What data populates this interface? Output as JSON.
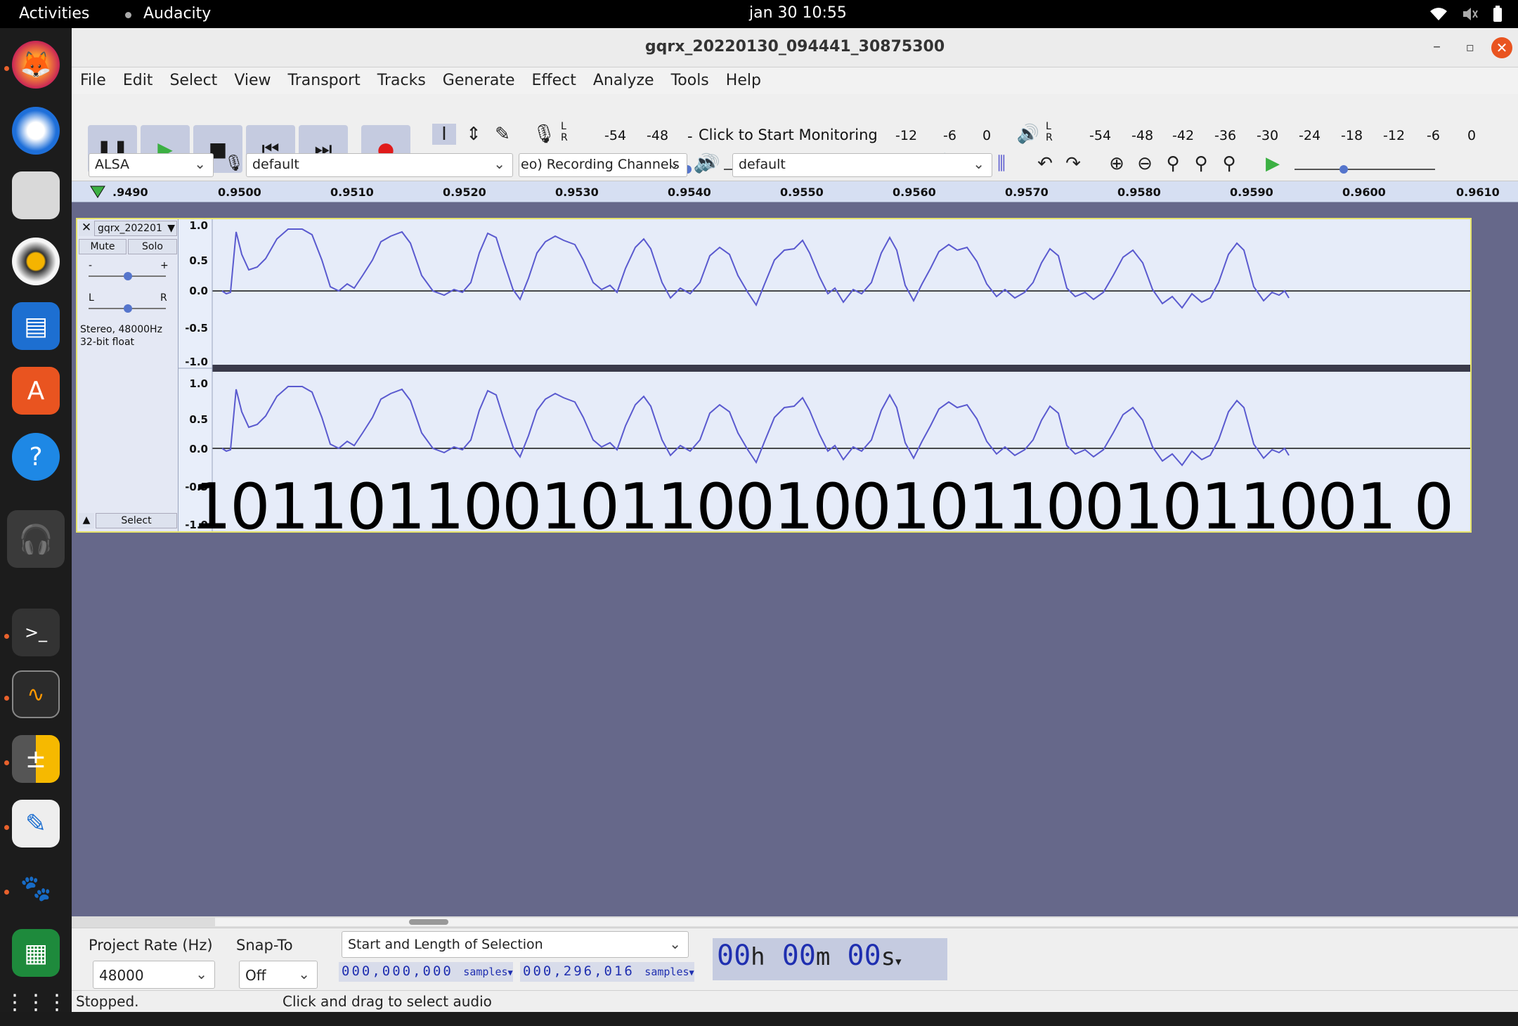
{
  "topbar": {
    "activities": "Activities",
    "app_name": "Audacity",
    "clock": "jan 30  10:55"
  },
  "window": {
    "title": "gqrx_20220130_094441_30875300"
  },
  "menu": [
    "File",
    "Edit",
    "Select",
    "View",
    "Transport",
    "Tracks",
    "Generate",
    "Effect",
    "Analyze",
    "Tools",
    "Help"
  ],
  "meters": {
    "record_L": "L",
    "record_R": "R",
    "record_scale": [
      "-54",
      "-48"
    ],
    "record_prompt": "Click to Start Monitoring",
    "record_scale2": [
      "-12",
      "-6",
      "0"
    ],
    "play_L": "L",
    "play_R": "R",
    "play_scale": [
      "-54",
      "-48",
      "-42",
      "-36",
      "-30",
      "-24",
      "-18",
      "-12",
      "-6",
      "0"
    ]
  },
  "device": {
    "host": "ALSA",
    "recording_device": "default",
    "channels": "eo) Recording Channels",
    "playback_device": "default"
  },
  "ruler": {
    "ticks": [
      ".9490",
      "0.9500",
      "0.9510",
      "0.9520",
      "0.9530",
      "0.9540",
      "0.9550",
      "0.9560",
      "0.9570",
      "0.9580",
      "0.9590",
      "0.9600",
      "0.9610"
    ]
  },
  "track": {
    "name": "gqrx_202201",
    "mute": "Mute",
    "solo": "Solo",
    "gain_min": "-",
    "gain_max": "+",
    "pan_left": "L",
    "pan_right": "R",
    "format_line1": "Stereo, 48000Hz",
    "format_line2": "32-bit float",
    "select": "Select",
    "y_labels": [
      "1.0",
      "0.5",
      "0.0",
      "-0.5",
      "-1.0"
    ],
    "overlay_bits": "1011011001011001001011001011001 0"
  },
  "bottom": {
    "project_rate_label": "Project Rate (Hz)",
    "project_rate": "48000",
    "snap_label": "Snap-To",
    "snap_value": "Off",
    "selection_mode": "Start and Length of Selection",
    "sel_start": "000,000,000",
    "sel_start_unit": "samples",
    "sel_length": "000,296,016",
    "sel_length_unit": "samples",
    "time_h": "00",
    "time_h_unit": "h",
    "time_m": "00",
    "time_m_unit": "m",
    "time_s": "00",
    "time_s_unit": "s",
    "status_left": "Stopped.",
    "status_right": "Click and drag to select audio"
  },
  "colors": {
    "accent": "#e95420",
    "waveform": "#5a5acf",
    "track_bg": "#e8eefa"
  }
}
